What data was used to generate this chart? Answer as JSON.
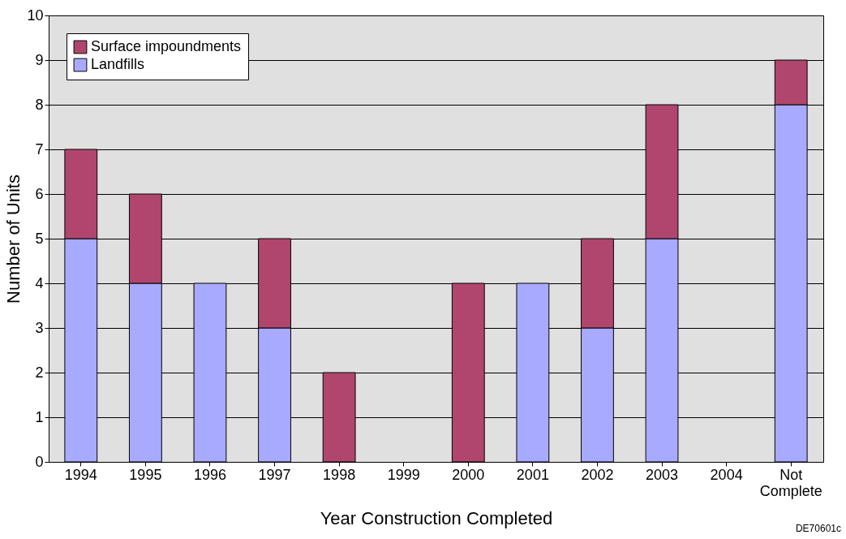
{
  "chart_data": {
    "type": "bar",
    "stacked": true,
    "xlabel": "Year Construction Completed",
    "ylabel": "Number of Units",
    "categories": [
      "1994",
      "1995",
      "1996",
      "1997",
      "1998",
      "1999",
      "2000",
      "2001",
      "2002",
      "2003",
      "2004",
      "Not Complete"
    ],
    "series": [
      {
        "name": "Landfills",
        "color": "#a8aaff",
        "values": [
          5,
          4,
          4,
          3,
          0,
          0,
          0,
          4,
          3,
          5,
          0,
          8
        ]
      },
      {
        "name": "Surface impoundments",
        "color": "#b0466e",
        "values": [
          2,
          2,
          0,
          2,
          2,
          0,
          4,
          0,
          2,
          3,
          0,
          1
        ]
      }
    ],
    "ylim": [
      0,
      10
    ],
    "yticks": [
      0,
      1,
      2,
      3,
      4,
      5,
      6,
      7,
      8,
      9,
      10
    ],
    "grid": "y",
    "legend": "top left",
    "annotations": [
      "DE70601c"
    ]
  }
}
